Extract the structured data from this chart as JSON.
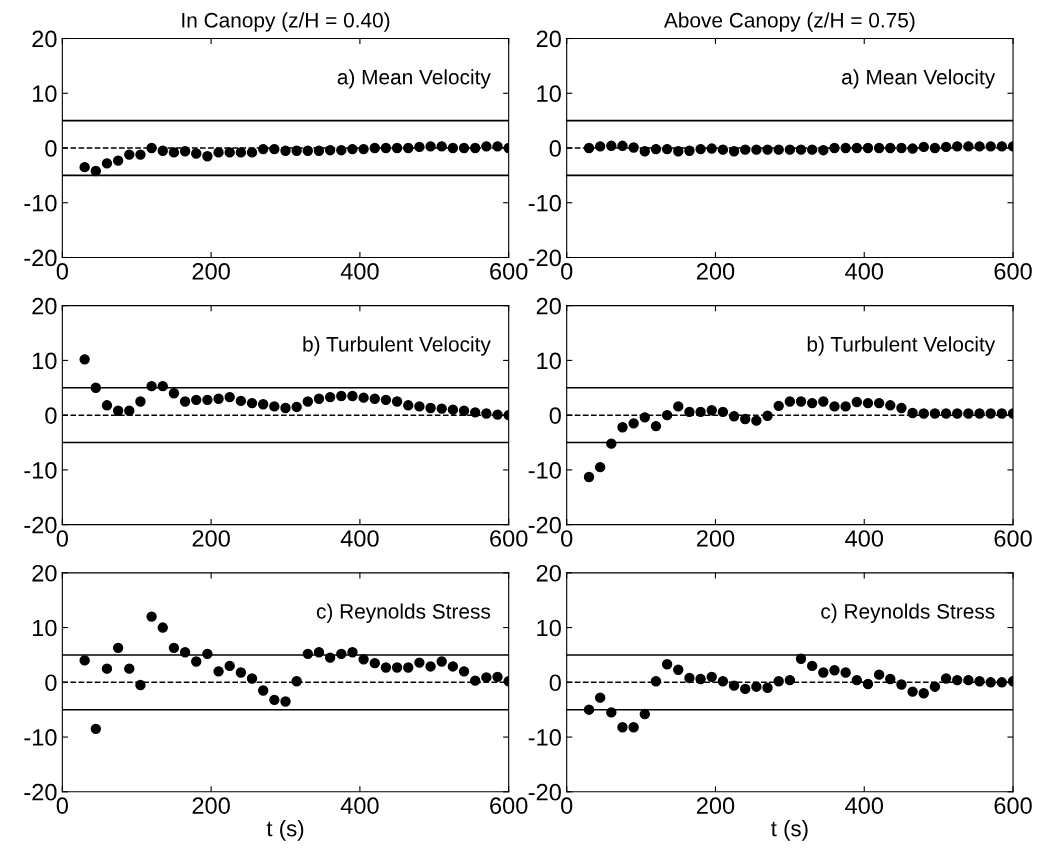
{
  "chart_data": [
    {
      "type": "scatter",
      "title": "In Canopy (z/H = 0.40)",
      "annotations": [
        "a) Mean Velocity"
      ],
      "x": [
        30,
        45,
        60,
        75,
        90,
        105,
        120,
        135,
        150,
        165,
        180,
        195,
        210,
        225,
        240,
        255,
        270,
        285,
        300,
        315,
        330,
        345,
        360,
        375,
        390,
        405,
        420,
        435,
        450,
        465,
        480,
        495,
        510,
        525,
        540,
        555,
        570,
        585,
        600
      ],
      "series": [
        {
          "color": "#000000",
          "values": [
            -3.5,
            -4.2,
            -2.8,
            -2.3,
            -1.2,
            -1.2,
            0,
            -0.5,
            -0.8,
            -0.6,
            -1,
            -1.5,
            -0.8,
            -0.8,
            -0.8,
            -0.8,
            -0.2,
            -0.2,
            -0.5,
            -0.5,
            -0.5,
            -0.5,
            -0.4,
            -0.4,
            -0.2,
            -0.2,
            0,
            0,
            0,
            0,
            0.2,
            0.3,
            0.3,
            0,
            0,
            0,
            0.3,
            0.3,
            0
          ]
        }
      ],
      "xlim": [
        0,
        600
      ],
      "ylim": [
        -20,
        20
      ],
      "xticks": [
        0,
        200,
        400,
        600
      ],
      "yticks": [
        -20,
        -10,
        0,
        10,
        20
      ],
      "marker": "circle",
      "grid": false,
      "legend": false,
      "ref_lines": [
        {
          "axis": "y",
          "value": 5,
          "line_style": "solid"
        },
        {
          "axis": "y",
          "value": 0,
          "line_style": "dashed"
        },
        {
          "axis": "y",
          "value": -5,
          "line_style": "solid"
        }
      ]
    },
    {
      "type": "scatter",
      "title": "Above Canopy (z/H = 0.75)",
      "annotations": [
        "a) Mean Velocity"
      ],
      "x": [
        30,
        45,
        60,
        75,
        90,
        105,
        120,
        135,
        150,
        165,
        180,
        195,
        210,
        225,
        240,
        255,
        270,
        285,
        300,
        315,
        330,
        345,
        360,
        375,
        390,
        405,
        420,
        435,
        450,
        465,
        480,
        495,
        510,
        525,
        540,
        555,
        570,
        585,
        600
      ],
      "series": [
        {
          "color": "#000000",
          "values": [
            0,
            0.3,
            0.4,
            0.4,
            0.1,
            -0.6,
            -0.2,
            -0.2,
            -0.6,
            -0.5,
            -0.2,
            -0.1,
            -0.3,
            -0.6,
            -0.3,
            -0.3,
            -0.3,
            -0.3,
            -0.3,
            -0.3,
            -0.3,
            -0.4,
            0,
            0,
            0,
            0,
            0,
            0,
            0,
            -0.1,
            0.2,
            0,
            0.2,
            0.3,
            0.3,
            0.3,
            0.3,
            0.3,
            0.3
          ]
        }
      ],
      "xlim": [
        0,
        600
      ],
      "ylim": [
        -20,
        20
      ],
      "xticks": [
        0,
        200,
        400,
        600
      ],
      "yticks": [
        -20,
        -10,
        0,
        10,
        20
      ],
      "marker": "circle",
      "grid": false,
      "legend": false,
      "ref_lines": [
        {
          "axis": "y",
          "value": 5,
          "line_style": "solid"
        },
        {
          "axis": "y",
          "value": 0,
          "line_style": "dashed"
        },
        {
          "axis": "y",
          "value": -5,
          "line_style": "solid"
        }
      ]
    },
    {
      "type": "scatter",
      "annotations": [
        "b) Turbulent Velocity"
      ],
      "x": [
        30,
        45,
        60,
        75,
        90,
        105,
        120,
        135,
        150,
        165,
        180,
        195,
        210,
        225,
        240,
        255,
        270,
        285,
        300,
        315,
        330,
        345,
        360,
        375,
        390,
        405,
        420,
        435,
        450,
        465,
        480,
        495,
        510,
        525,
        540,
        555,
        570,
        585,
        600
      ],
      "series": [
        {
          "color": "#000000",
          "values": [
            10.2,
            5,
            1.8,
            0.8,
            0.8,
            2.5,
            5.3,
            5.3,
            4,
            2.5,
            2.8,
            2.8,
            3,
            3.3,
            2.6,
            2.2,
            2,
            1.6,
            1.3,
            1.5,
            2.5,
            3,
            3.3,
            3.5,
            3.5,
            3.2,
            3,
            2.8,
            2.5,
            1.8,
            1.6,
            1.3,
            1.2,
            1,
            0.8,
            0.5,
            0.3,
            0.1,
            0
          ]
        }
      ],
      "xlim": [
        0,
        600
      ],
      "ylim": [
        -20,
        20
      ],
      "xticks": [
        0,
        200,
        400,
        600
      ],
      "yticks": [
        -20,
        -10,
        0,
        10,
        20
      ],
      "marker": "circle",
      "grid": false,
      "legend": false,
      "ref_lines": [
        {
          "axis": "y",
          "value": 5,
          "line_style": "solid"
        },
        {
          "axis": "y",
          "value": 0,
          "line_style": "dashed"
        },
        {
          "axis": "y",
          "value": -5,
          "line_style": "solid"
        }
      ]
    },
    {
      "type": "scatter",
      "annotations": [
        "b) Turbulent Velocity"
      ],
      "x": [
        30,
        45,
        60,
        75,
        90,
        105,
        120,
        135,
        150,
        165,
        180,
        195,
        210,
        225,
        240,
        255,
        270,
        285,
        300,
        315,
        330,
        345,
        360,
        375,
        390,
        405,
        420,
        435,
        450,
        465,
        480,
        495,
        510,
        525,
        540,
        555,
        570,
        585,
        600
      ],
      "series": [
        {
          "color": "#000000",
          "values": [
            -11.3,
            -9.5,
            -5.2,
            -2.2,
            -1.5,
            -0.4,
            -2,
            0,
            1.6,
            0.6,
            0.6,
            0.9,
            0.6,
            -0.2,
            -0.7,
            -1,
            -0.1,
            1.7,
            2.5,
            2.5,
            2.2,
            2.5,
            1.6,
            1.6,
            2.4,
            2.2,
            2.2,
            1.8,
            1.3,
            0.4,
            0.3,
            0.3,
            0.3,
            0.3,
            0.3,
            0.3,
            0.3,
            0.3,
            0.3
          ]
        }
      ],
      "xlim": [
        0,
        600
      ],
      "ylim": [
        -20,
        20
      ],
      "xticks": [
        0,
        200,
        400,
        600
      ],
      "yticks": [
        -20,
        -10,
        0,
        10,
        20
      ],
      "marker": "circle",
      "grid": false,
      "legend": false,
      "ref_lines": [
        {
          "axis": "y",
          "value": 5,
          "line_style": "solid"
        },
        {
          "axis": "y",
          "value": 0,
          "line_style": "dashed"
        },
        {
          "axis": "y",
          "value": -5,
          "line_style": "solid"
        }
      ]
    },
    {
      "type": "scatter",
      "annotations": [
        "c) Reynolds Stress"
      ],
      "xlabel": "t (s)",
      "x": [
        30,
        45,
        60,
        75,
        90,
        105,
        120,
        135,
        150,
        165,
        180,
        195,
        210,
        225,
        240,
        255,
        270,
        285,
        300,
        315,
        330,
        345,
        360,
        375,
        390,
        405,
        420,
        435,
        450,
        465,
        480,
        495,
        510,
        525,
        540,
        555,
        570,
        585,
        600
      ],
      "series": [
        {
          "color": "#000000",
          "values": [
            4,
            -8.5,
            2.5,
            6.3,
            2.5,
            -0.5,
            12,
            10,
            6.3,
            5.5,
            3.8,
            5.2,
            2,
            3,
            1.8,
            0.7,
            -1.5,
            -3.2,
            -3.5,
            0.2,
            5.2,
            5.5,
            4.5,
            5.2,
            5.5,
            4.2,
            3.5,
            2.7,
            2.7,
            2.7,
            3.6,
            2.9,
            3.8,
            2.9,
            2,
            0.3,
            0.9,
            1,
            0.2
          ]
        }
      ],
      "xlim": [
        0,
        600
      ],
      "ylim": [
        -20,
        20
      ],
      "xticks": [
        0,
        200,
        400,
        600
      ],
      "yticks": [
        -20,
        -10,
        0,
        10,
        20
      ],
      "marker": "circle",
      "grid": false,
      "legend": false,
      "ref_lines": [
        {
          "axis": "y",
          "value": 5,
          "line_style": "solid"
        },
        {
          "axis": "y",
          "value": 0,
          "line_style": "dashed"
        },
        {
          "axis": "y",
          "value": -5,
          "line_style": "solid"
        }
      ]
    },
    {
      "type": "scatter",
      "annotations": [
        "c) Reynolds Stress"
      ],
      "xlabel": "t (s)",
      "x": [
        30,
        45,
        60,
        75,
        90,
        105,
        120,
        135,
        150,
        165,
        180,
        195,
        210,
        225,
        240,
        255,
        270,
        285,
        300,
        315,
        330,
        345,
        360,
        375,
        390,
        405,
        420,
        435,
        450,
        465,
        480,
        495,
        510,
        525,
        540,
        555,
        570,
        585,
        600
      ],
      "series": [
        {
          "color": "#000000",
          "values": [
            -5,
            -2.8,
            -5.5,
            -8.2,
            -8.2,
            -5.8,
            0.2,
            3.3,
            2.3,
            0.8,
            0.6,
            1,
            0.2,
            -0.6,
            -1.2,
            -0.8,
            -1,
            0.2,
            0.4,
            4.3,
            3,
            1.8,
            2.2,
            1.8,
            0.4,
            -0.3,
            1.4,
            0.6,
            -0.4,
            -1.7,
            -2,
            -0.8,
            0.7,
            0.4,
            0.4,
            0.2,
            0,
            0,
            0.2
          ]
        }
      ],
      "xlim": [
        0,
        600
      ],
      "ylim": [
        -20,
        20
      ],
      "xticks": [
        0,
        200,
        400,
        600
      ],
      "yticks": [
        -20,
        -10,
        0,
        10,
        20
      ],
      "marker": "circle",
      "grid": false,
      "legend": false,
      "ref_lines": [
        {
          "axis": "y",
          "value": 5,
          "line_style": "solid"
        },
        {
          "axis": "y",
          "value": 0,
          "line_style": "dashed"
        },
        {
          "axis": "y",
          "value": -5,
          "line_style": "solid"
        }
      ]
    }
  ]
}
